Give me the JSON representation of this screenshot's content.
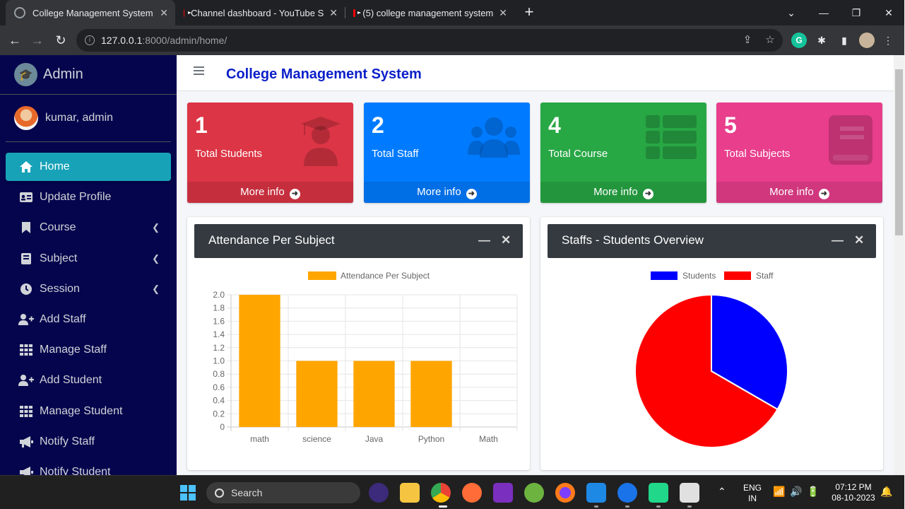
{
  "browser": {
    "tabs": [
      {
        "title": "College Management System",
        "active": true,
        "icon": "globe-icon"
      },
      {
        "title": "Channel dashboard - YouTube S",
        "active": false,
        "icon": "youtube-icon"
      },
      {
        "title": "(5) college management system",
        "active": false,
        "icon": "youtube-icon"
      }
    ],
    "url_host": "127.0.0.1",
    "url_path": ":8000/admin/home/"
  },
  "sidebar": {
    "brand": "Admin",
    "user": "kumar, admin",
    "items": [
      {
        "label": "Home",
        "icon": "home-icon",
        "active": true,
        "chevron": false
      },
      {
        "label": "Update Profile",
        "icon": "id-card-icon",
        "active": false,
        "chevron": false
      },
      {
        "label": "Course",
        "icon": "bookmark-icon",
        "active": false,
        "chevron": true
      },
      {
        "label": "Subject",
        "icon": "book-icon",
        "active": false,
        "chevron": true
      },
      {
        "label": "Session",
        "icon": "clock-icon",
        "active": false,
        "chevron": true
      },
      {
        "label": "Add Staff",
        "icon": "user-plus-icon",
        "active": false,
        "chevron": false
      },
      {
        "label": "Manage Staff",
        "icon": "grid-icon",
        "active": false,
        "chevron": false
      },
      {
        "label": "Add Student",
        "icon": "user-plus-icon",
        "active": false,
        "chevron": false
      },
      {
        "label": "Manage Student",
        "icon": "grid-icon",
        "active": false,
        "chevron": false
      },
      {
        "label": "Notify Staff",
        "icon": "megaphone-icon",
        "active": false,
        "chevron": false
      },
      {
        "label": "Notify Student",
        "icon": "megaphone-icon",
        "active": false,
        "chevron": false
      }
    ]
  },
  "header": {
    "title": "College Management System"
  },
  "stats": [
    {
      "number": "1",
      "label": "Total Students",
      "footer": "More info",
      "color": "#dc3545",
      "icon": "graduate-icon"
    },
    {
      "number": "2",
      "label": "Total Staff",
      "footer": "More info",
      "color": "#007bff",
      "icon": "users-icon"
    },
    {
      "number": "4",
      "label": "Total Course",
      "footer": "More info",
      "color": "#28a745",
      "icon": "list-icon"
    },
    {
      "number": "5",
      "label": "Total Subjects",
      "footer": "More info",
      "color": "#e83e8c",
      "icon": "book-icon"
    }
  ],
  "cards": {
    "attendance": {
      "title": "Attendance Per Subject"
    },
    "overview": {
      "title": "Staffs - Students Overview"
    }
  },
  "chart_data": [
    {
      "type": "bar",
      "legend": [
        "Attendance Per Subject"
      ],
      "categories": [
        "math",
        "science",
        "Java",
        "Python",
        "Math"
      ],
      "series": [
        {
          "name": "Attendance Per Subject",
          "values": [
            2,
            1,
            1,
            1,
            0
          ],
          "color": "#ffa500"
        }
      ],
      "ylim": [
        0,
        2
      ],
      "yticks": [
        "2.0",
        "1.8",
        "1.6",
        "1.4",
        "1.2",
        "1.0",
        "0.8",
        "0.6",
        "0.4",
        "0.2",
        "0"
      ],
      "grid": true,
      "legend_position": "top"
    },
    {
      "type": "pie",
      "labels": [
        "Students",
        "Staff"
      ],
      "values": [
        1,
        2
      ],
      "colors": [
        "#0000ff",
        "#ff0000"
      ],
      "legend_position": "top"
    }
  ],
  "taskbar": {
    "search": "Search",
    "lang_top": "ENG",
    "lang_bottom": "IN",
    "time": "07:12 PM",
    "date": "08-10-2023"
  }
}
